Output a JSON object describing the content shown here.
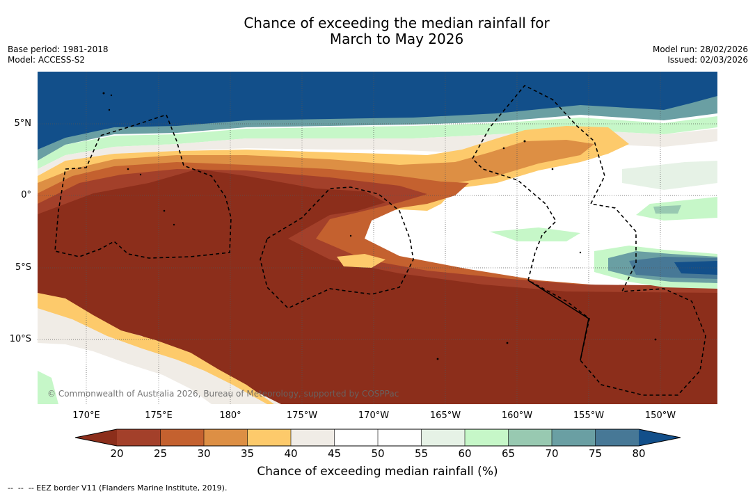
{
  "title_line1": "Chance of exceeding the median rainfall for",
  "title_line2": "March to May 2026",
  "base_period": "Base period: 1981-2018",
  "model": "Model: ACCESS-S2",
  "model_run": "Model run: 28/02/2026",
  "issued": "Issued: 02/03/2026",
  "map": {
    "lat_labels": [
      "5°N",
      "0°",
      "5°S",
      "10°S"
    ],
    "lon_labels": [
      "170°E",
      "175°E",
      "180°",
      "175°W",
      "170°W",
      "165°W",
      "160°W",
      "155°W",
      "150°W"
    ],
    "copyright": "© Commonwealth of Australia 2026, Bureau of Meteorology, supported by COSPPac"
  },
  "colorbar": {
    "ticks": [
      "20",
      "25",
      "30",
      "35",
      "40",
      "45",
      "50",
      "55",
      "60",
      "65",
      "70",
      "75",
      "80"
    ],
    "label": "Chance of exceeding median rainfall (%)",
    "colors": {
      "below_20": "#8c2e1b",
      "20_25": "#a3402a",
      "25_30": "#c4612f",
      "30_35": "#dd8f44",
      "35_40": "#fdca6b",
      "40_45": "#f0ece6",
      "45_50": "#ffffff",
      "50_55": "#ffffff",
      "55_60": "#e6f2e6",
      "60_65": "#c6f7c8",
      "65_70": "#98c9b1",
      "70_75": "#6a9fa3",
      "75_80": "#477896",
      "above_80": "#124f8a"
    }
  },
  "footnote": "--  --  -- EEZ border V11 (Flanders Marine Institute, 2019)."
}
